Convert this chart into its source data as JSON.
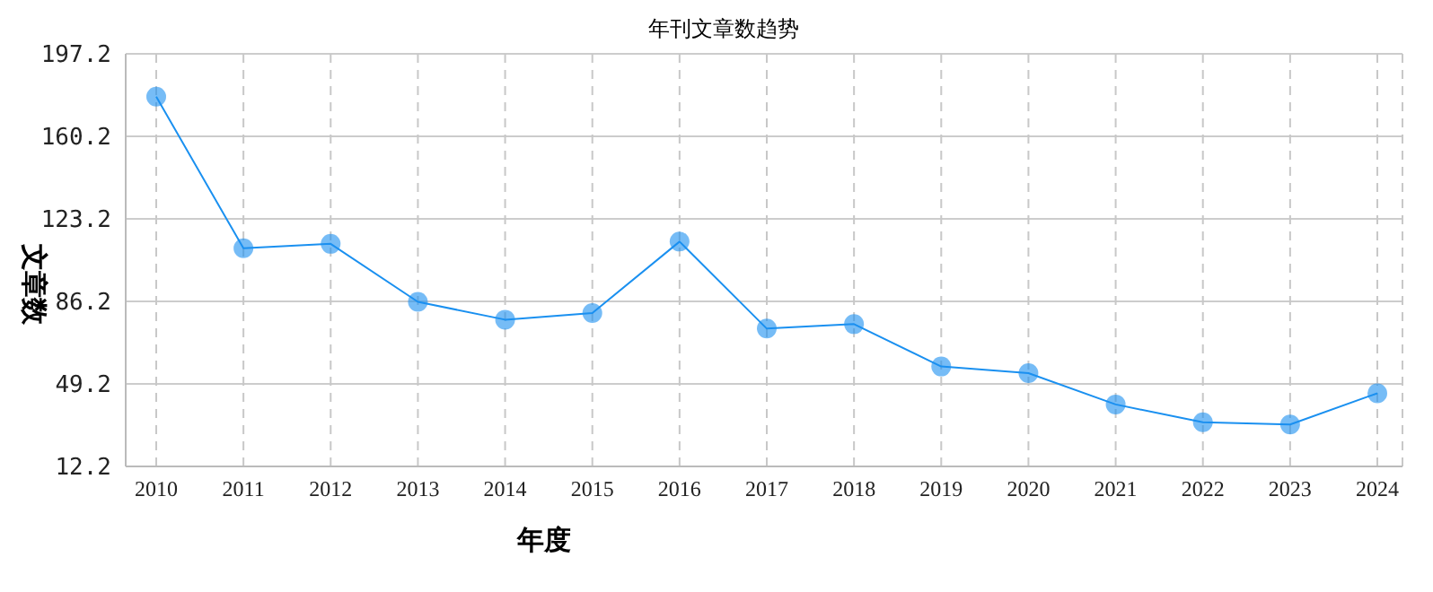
{
  "chart_data": {
    "type": "line",
    "title": "年刊文章数趋势",
    "xlabel": "年度",
    "ylabel": "文章数",
    "categories": [
      "2010",
      "2011",
      "2012",
      "2013",
      "2014",
      "2015",
      "2016",
      "2017",
      "2018",
      "2019",
      "2020",
      "2021",
      "2022",
      "2023",
      "2024"
    ],
    "series": [
      {
        "color": "#1a90f0",
        "values": [
          178,
          110,
          112,
          86,
          78,
          81,
          113,
          74,
          76,
          57,
          54,
          40,
          32,
          31,
          45
        ]
      }
    ],
    "ylim": [
      12.2,
      197.2
    ],
    "yticks": [
      12.2,
      49.2,
      86.2,
      123.2,
      160.2,
      197.2
    ],
    "grid": true,
    "marker": "circle",
    "legend": false
  }
}
